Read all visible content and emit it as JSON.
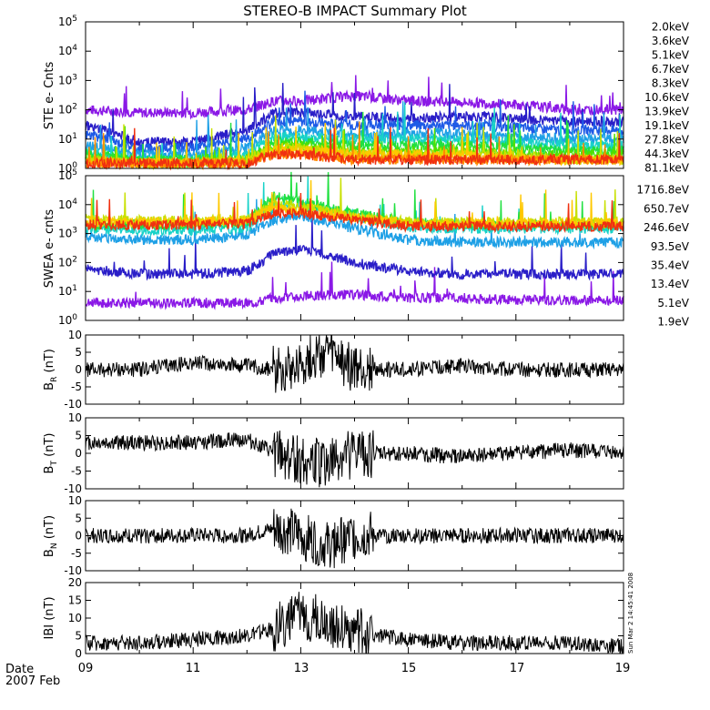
{
  "title": "STEREO-B IMPACT Summary Plot",
  "date_label": "Date",
  "date_sub": "2007 Feb",
  "stamp": "Sun Mar  2 14:45:41 2008",
  "x_ticks": [
    "09",
    "11",
    "13",
    "15",
    "17",
    "19"
  ],
  "chart_data": [
    {
      "type": "line",
      "id": "ste",
      "ylabel": "STE e- Cnts",
      "yscale": "log",
      "ylim": [
        1,
        100000
      ],
      "y_ticks": [
        "10^0",
        "10^1",
        "10^2",
        "10^3",
        "10^4",
        "10^5"
      ],
      "x": [
        "2007-02-09",
        "2007-02-10",
        "2007-02-11",
        "2007-02-12",
        "2007-02-12T12",
        "2007-02-13",
        "2007-02-14",
        "2007-02-15",
        "2007-02-16",
        "2007-02-17",
        "2007-02-18",
        "2007-02-19"
      ],
      "series": [
        {
          "name": "2.0keV",
          "color": "#8a18e6",
          "values": [
            100,
            80,
            80,
            100,
            200,
            200,
            300,
            200,
            180,
            150,
            100,
            100
          ]
        },
        {
          "name": "3.6keV",
          "color": "#2a1ec8",
          "values": [
            30,
            8,
            8,
            20,
            80,
            80,
            60,
            50,
            60,
            50,
            40,
            40
          ]
        },
        {
          "name": "5.1keV",
          "color": "#1e5ae6",
          "values": [
            15,
            5,
            5,
            10,
            40,
            40,
            30,
            30,
            30,
            25,
            20,
            20
          ]
        },
        {
          "name": "6.7keV",
          "color": "#1ea0e6",
          "values": [
            6,
            3,
            3,
            5,
            20,
            20,
            15,
            15,
            15,
            12,
            10,
            10
          ]
        },
        {
          "name": "8.3keV",
          "color": "#18d2c8",
          "values": [
            4,
            2,
            2,
            3,
            12,
            12,
            10,
            10,
            10,
            8,
            6,
            6
          ]
        },
        {
          "name": "10.6keV",
          "color": "#20e040",
          "values": [
            3,
            2,
            2,
            2,
            8,
            8,
            6,
            6,
            6,
            5,
            4,
            4
          ]
        },
        {
          "name": "13.9keV",
          "color": "#50e000",
          "values": [
            2,
            1.5,
            1.5,
            2,
            6,
            6,
            4,
            4,
            4,
            3,
            3,
            3
          ]
        },
        {
          "name": "19.1keV",
          "color": "#c8e000",
          "values": [
            2,
            1.5,
            1.5,
            2,
            5,
            5,
            3,
            3,
            3,
            3,
            2,
            2
          ]
        },
        {
          "name": "27.8keV",
          "color": "#ffc800",
          "values": [
            1.5,
            1.5,
            1.5,
            1.5,
            4,
            4,
            3,
            3,
            3,
            2,
            2,
            2
          ]
        },
        {
          "name": "44.3keV",
          "color": "#ff8a00",
          "values": [
            1.5,
            1.5,
            1.5,
            1.5,
            3,
            3,
            2,
            2,
            2,
            2,
            2,
            2
          ]
        },
        {
          "name": "81.1keV",
          "color": "#f03010",
          "values": [
            1.5,
            1.5,
            1.5,
            1.5,
            3,
            3,
            2,
            2,
            2,
            2,
            2,
            2
          ]
        }
      ]
    },
    {
      "type": "line",
      "id": "swea",
      "ylabel": "SWEA e- cnts",
      "yscale": "log",
      "ylim": [
        1,
        100000
      ],
      "y_ticks": [
        "10^0",
        "10^1",
        "10^2",
        "10^3",
        "10^4",
        "10^5"
      ],
      "x": [
        "2007-02-09",
        "2007-02-10",
        "2007-02-11",
        "2007-02-12",
        "2007-02-12T12",
        "2007-02-13",
        "2007-02-14",
        "2007-02-15",
        "2007-02-16",
        "2007-02-17",
        "2007-02-18",
        "2007-02-19"
      ],
      "series": [
        {
          "name": "1716.8eV",
          "color": "#8a18e6",
          "values": [
            4,
            4,
            4,
            4,
            6,
            7,
            8,
            6,
            6,
            5,
            5,
            5
          ]
        },
        {
          "name": "650.7eV",
          "color": "#2a1ec8",
          "values": [
            60,
            40,
            40,
            50,
            200,
            300,
            100,
            50,
            40,
            40,
            40,
            40
          ]
        },
        {
          "name": "246.6eV",
          "color": "#1ea0e6",
          "values": [
            800,
            600,
            600,
            900,
            3000,
            4000,
            1500,
            600,
            500,
            500,
            500,
            500
          ]
        },
        {
          "name": "93.5eV",
          "color": "#18d2c8",
          "values": [
            1500,
            1300,
            1300,
            1600,
            8000,
            9000,
            4000,
            1600,
            1500,
            1500,
            1500,
            1500
          ]
        },
        {
          "name": "35.4eV",
          "color": "#20e040",
          "values": [
            2000,
            2000,
            2000,
            2500,
            20000,
            12000,
            5000,
            2500,
            2000,
            2000,
            2000,
            2000
          ]
        },
        {
          "name": "13.4eV",
          "color": "#c8e000",
          "values": [
            3000,
            2800,
            2800,
            3000,
            10000,
            9000,
            4000,
            2500,
            2500,
            2500,
            2500,
            2500
          ]
        },
        {
          "name": "5.1eV",
          "color": "#ffc800",
          "values": [
            2500,
            2500,
            2500,
            2800,
            7000,
            6000,
            3500,
            2200,
            2200,
            2200,
            2200,
            2200
          ]
        },
        {
          "name": "1.9eV",
          "color": "#f03010",
          "values": [
            2000,
            2000,
            2000,
            2200,
            5000,
            5000,
            3000,
            1800,
            1800,
            1800,
            1800,
            1800
          ]
        }
      ]
    },
    {
      "type": "line",
      "id": "br",
      "ylabel": "B_R (nT)",
      "ylim": [
        -10,
        10
      ],
      "y_ticks": [
        "-10",
        "-5",
        "0",
        "5",
        "10"
      ],
      "x": [
        "2007-02-09",
        "2007-02-10",
        "2007-02-11",
        "2007-02-12",
        "2007-02-12T12",
        "2007-02-13",
        "2007-02-13T12",
        "2007-02-14",
        "2007-02-15",
        "2007-02-16",
        "2007-02-17",
        "2007-02-18",
        "2007-02-19"
      ],
      "series": [
        {
          "name": "",
          "color": "#000000",
          "values": [
            0,
            0,
            2,
            1,
            0,
            2,
            5,
            0,
            0,
            1,
            0,
            0,
            0
          ]
        }
      ]
    },
    {
      "type": "line",
      "id": "bt",
      "ylabel": "B_T (nT)",
      "ylim": [
        -10,
        10
      ],
      "y_ticks": [
        "-10",
        "-5",
        "0",
        "5",
        "10"
      ],
      "x": [
        "2007-02-09",
        "2007-02-10",
        "2007-02-11",
        "2007-02-12",
        "2007-02-12T12",
        "2007-02-13",
        "2007-02-13T12",
        "2007-02-14",
        "2007-02-15",
        "2007-02-16",
        "2007-02-17",
        "2007-02-18",
        "2007-02-19"
      ],
      "series": [
        {
          "name": "",
          "color": "#000000",
          "values": [
            3,
            3,
            3,
            4,
            0,
            -2,
            -3,
            0,
            0,
            -1,
            0,
            1,
            0
          ]
        }
      ]
    },
    {
      "type": "line",
      "id": "bn",
      "ylabel": "B_N (nT)",
      "ylim": [
        -10,
        10
      ],
      "y_ticks": [
        "-10",
        "-5",
        "0",
        "5",
        "10"
      ],
      "x": [
        "2007-02-09",
        "2007-02-10",
        "2007-02-11",
        "2007-02-12",
        "2007-02-12T12",
        "2007-02-13",
        "2007-02-13T12",
        "2007-02-14",
        "2007-02-15",
        "2007-02-16",
        "2007-02-17",
        "2007-02-18",
        "2007-02-19"
      ],
      "series": [
        {
          "name": "",
          "color": "#000000",
          "values": [
            0,
            0,
            0,
            0,
            2,
            0,
            -3,
            0,
            0,
            0,
            0,
            0,
            0
          ]
        }
      ]
    },
    {
      "type": "line",
      "id": "bmag",
      "ylabel": "IBI (nT)",
      "ylim": [
        0,
        20
      ],
      "y_ticks": [
        "0",
        "5",
        "10",
        "15",
        "20"
      ],
      "x": [
        "2007-02-09",
        "2007-02-10",
        "2007-02-11",
        "2007-02-12",
        "2007-02-12T12",
        "2007-02-13",
        "2007-02-13T12",
        "2007-02-14",
        "2007-02-15",
        "2007-02-16",
        "2007-02-17",
        "2007-02-18",
        "2007-02-19"
      ],
      "series": [
        {
          "name": "",
          "color": "#000000",
          "values": [
            3,
            3,
            4,
            5,
            7,
            11,
            9,
            6,
            4,
            3,
            3,
            3,
            2
          ]
        }
      ]
    }
  ]
}
